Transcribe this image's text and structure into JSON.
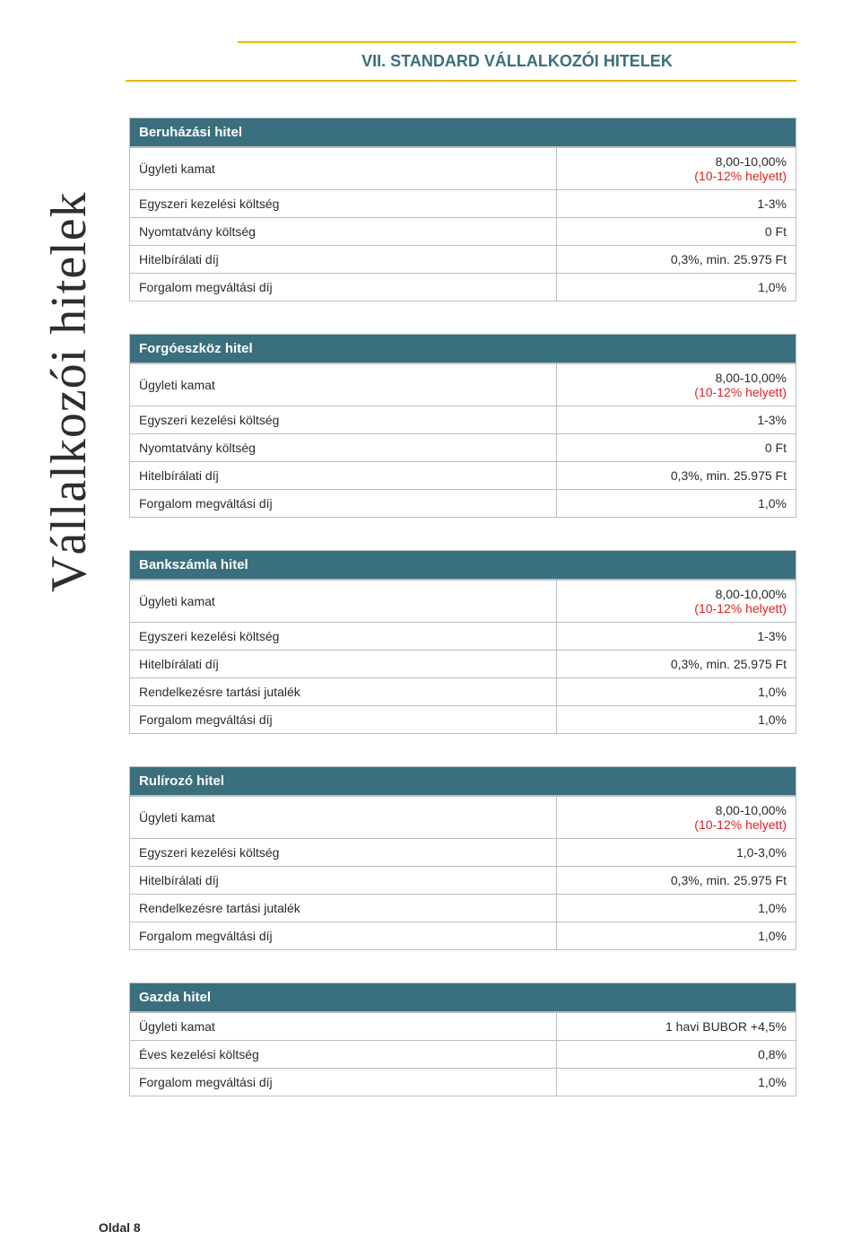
{
  "page": {
    "title": "VII. STANDARD VÁLLALKOZÓI HITELEK",
    "side_label": "Vállalkozói hitelek",
    "footer": "Oldal 8"
  },
  "style": {
    "header_bg": "#3a6f7d",
    "header_fg": "#ffffff",
    "accent_border": "#e6b800",
    "cell_border": "#b8bfc4",
    "title_color": "#3a6f7d",
    "red": "#d22",
    "body_font_size": 14,
    "title_font_size": 18
  },
  "tables": [
    {
      "title": "Beruházási hitel",
      "rows": [
        {
          "label": "Ügyleti kamat",
          "value": "8,00-10,00%",
          "sub": "(10-12% helyett)",
          "sub_red": true
        },
        {
          "label": "Egyszeri kezelési költség",
          "value": "1-3%"
        },
        {
          "label": "Nyomtatvány költség",
          "value": "0 Ft"
        },
        {
          "label": "Hitelbírálati díj",
          "value": "0,3%, min. 25.975 Ft"
        },
        {
          "label": "Forgalom megváltási díj",
          "value": "1,0%"
        }
      ]
    },
    {
      "title": "Forgóeszköz hitel",
      "rows": [
        {
          "label": "Ügyleti kamat",
          "value": "8,00-10,00%",
          "sub": "(10-12% helyett)",
          "sub_red": true
        },
        {
          "label": "Egyszeri kezelési költség",
          "value": "1-3%"
        },
        {
          "label": "Nyomtatvány költség",
          "value": "0 Ft"
        },
        {
          "label": "Hitelbírálati díj",
          "value": "0,3%, min. 25.975 Ft"
        },
        {
          "label": "Forgalom megváltási díj",
          "value": "1,0%"
        }
      ]
    },
    {
      "title": "Bankszámla hitel",
      "rows": [
        {
          "label": "Ügyleti kamat",
          "value": "8,00-10,00%",
          "sub": "(10-12% helyett)",
          "sub_red": true
        },
        {
          "label": "Egyszeri kezelési költség",
          "value": "1-3%"
        },
        {
          "label": "Hitelbírálati díj",
          "value": "0,3%, min. 25.975 Ft"
        },
        {
          "label": "Rendelkezésre tartási jutalék",
          "value": "1,0%"
        },
        {
          "label": "Forgalom megváltási díj",
          "value": "1,0%"
        }
      ]
    },
    {
      "title": "Rulírozó hitel",
      "rows": [
        {
          "label": "Ügyleti kamat",
          "value": "8,00-10,00%",
          "sub": "(10-12% helyett)",
          "sub_red": true
        },
        {
          "label": "Egyszeri kezelési költség",
          "value": "1,0-3,0%"
        },
        {
          "label": "Hitelbírálati díj",
          "value": "0,3%, min. 25.975 Ft"
        },
        {
          "label": "Rendelkezésre tartási jutalék",
          "value": "1,0%"
        },
        {
          "label": "Forgalom megváltási díj",
          "value": "1,0%"
        }
      ]
    },
    {
      "title": "Gazda hitel",
      "rows": [
        {
          "label": "Ügyleti kamat",
          "value": "1 havi BUBOR +4,5%"
        },
        {
          "label": "Éves kezelési költség",
          "value": "0,8%"
        },
        {
          "label": "Forgalom megváltási díj",
          "value": "1,0%"
        }
      ]
    }
  ]
}
